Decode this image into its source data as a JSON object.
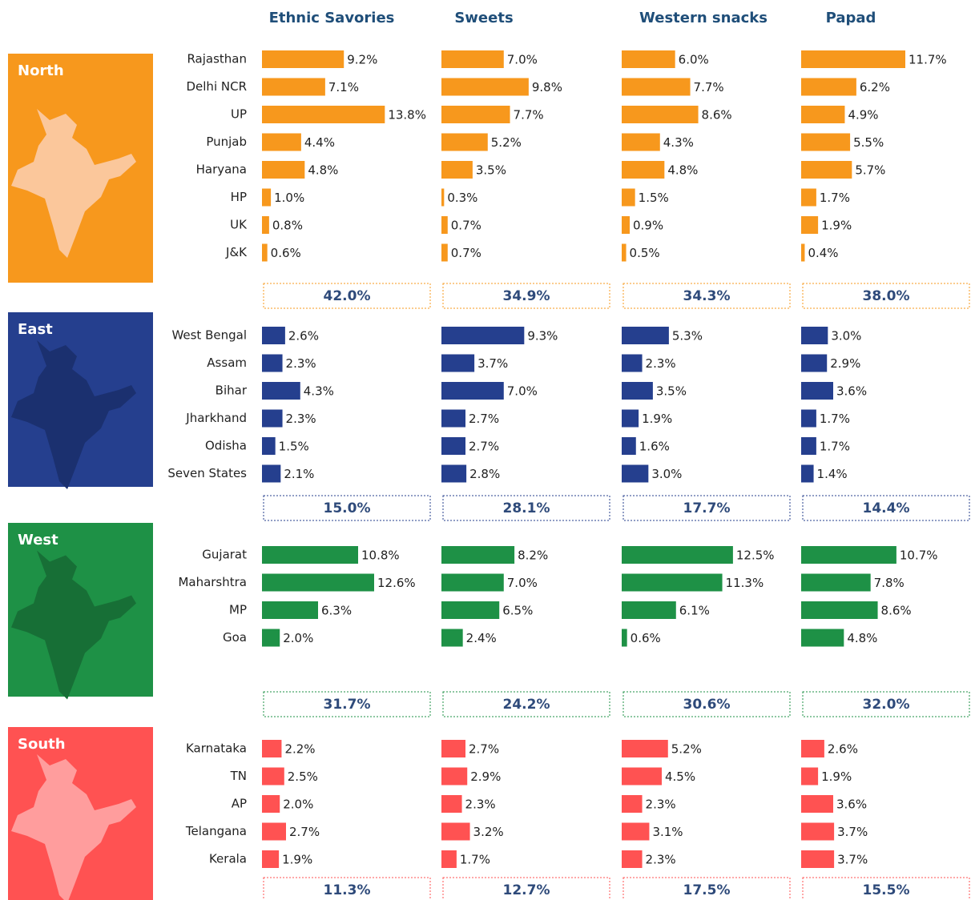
{
  "chart_data": [
    {
      "type": "bar",
      "orientation": "horizontal",
      "title": "North",
      "color": "#f7981d",
      "xlim": [
        0,
        18
      ],
      "categories": [
        "Rajasthan",
        "Delhi NCR",
        "UP",
        "Punjab",
        "Haryana",
        "HP",
        "UK",
        "J&K"
      ],
      "series": [
        {
          "name": "Ethnic Savories",
          "values": [
            9.2,
            7.1,
            13.8,
            4.4,
            4.8,
            1.0,
            0.8,
            0.6
          ],
          "value_labels": [
            "9.2%",
            "7.1%",
            "13.8%",
            "4.4%",
            "4.8%",
            "1.0%",
            "0.8%",
            "0.6%"
          ],
          "total": 42.0,
          "total_label": "42.0%"
        },
        {
          "name": "Sweets",
          "values": [
            7.0,
            9.8,
            7.7,
            5.2,
            3.5,
            0.3,
            0.7,
            0.7
          ],
          "value_labels": [
            "7.0%",
            "9.8%",
            "7.7%",
            "5.2%",
            "3.5%",
            "0.3%",
            "0.7%",
            "0.7%"
          ],
          "total": 34.9,
          "total_label": "34.9%"
        },
        {
          "name": "Western snacks",
          "values": [
            6.0,
            7.7,
            8.6,
            4.3,
            4.8,
            1.5,
            0.9,
            0.5
          ],
          "value_labels": [
            "6.0%",
            "7.7%",
            "8.6%",
            "4.3%",
            "4.8%",
            "1.5%",
            "0.9%",
            "0.5%"
          ],
          "total": 34.3,
          "total_label": "34.3%"
        },
        {
          "name": "Papad",
          "values": [
            11.7,
            6.2,
            4.9,
            5.5,
            5.7,
            1.7,
            1.9,
            0.4
          ],
          "value_labels": [
            "11.7%",
            "6.2%",
            "4.9%",
            "5.5%",
            "5.7%",
            "1.7%",
            "1.9%",
            "0.4%"
          ],
          "total": 38.0,
          "total_label": "38.0%"
        }
      ]
    },
    {
      "type": "bar",
      "orientation": "horizontal",
      "title": "East",
      "color": "#253f8e",
      "xlim": [
        0,
        18
      ],
      "categories": [
        "West Bengal",
        "Assam",
        "Bihar",
        "Jharkhand",
        "Odisha",
        "Seven States"
      ],
      "series": [
        {
          "name": "Ethnic Savories",
          "values": [
            2.6,
            2.3,
            4.3,
            2.3,
            1.5,
            2.1
          ],
          "value_labels": [
            "2.6%",
            "2.3%",
            "4.3%",
            "2.3%",
            "1.5%",
            "2.1%"
          ],
          "total": 15.0,
          "total_label": "15.0%"
        },
        {
          "name": "Sweets",
          "values": [
            9.3,
            3.7,
            7.0,
            2.7,
            2.7,
            2.8
          ],
          "value_labels": [
            "9.3%",
            "3.7%",
            "7.0%",
            "2.7%",
            "2.7%",
            "2.8%"
          ],
          "total": 28.1,
          "total_label": "28.1%"
        },
        {
          "name": "Western snacks",
          "values": [
            5.3,
            2.3,
            3.5,
            1.9,
            1.6,
            3.0
          ],
          "value_labels": [
            "5.3%",
            "2.3%",
            "3.5%",
            "1.9%",
            "1.6%",
            "3.0%"
          ],
          "total": 17.7,
          "total_label": "17.7%"
        },
        {
          "name": "Papad",
          "values": [
            3.0,
            2.9,
            3.6,
            1.7,
            1.7,
            1.4
          ],
          "value_labels": [
            "3.0%",
            "2.9%",
            "3.6%",
            "1.7%",
            "1.7%",
            "1.4%"
          ],
          "total": 14.4,
          "total_label": "14.4%"
        }
      ]
    },
    {
      "type": "bar",
      "orientation": "horizontal",
      "title": "West",
      "color": "#1e9146",
      "xlim": [
        0,
        18
      ],
      "categories": [
        "Gujarat",
        "Maharshtra",
        "MP",
        "Goa"
      ],
      "series": [
        {
          "name": "Ethnic Savories",
          "values": [
            10.8,
            12.6,
            6.3,
            2.0
          ],
          "value_labels": [
            "10.8%",
            "12.6%",
            "6.3%",
            "2.0%"
          ],
          "total": 31.7,
          "total_label": "31.7%"
        },
        {
          "name": "Sweets",
          "values": [
            8.2,
            7.0,
            6.5,
            2.4
          ],
          "value_labels": [
            "8.2%",
            "7.0%",
            "6.5%",
            "2.4%"
          ],
          "total": 24.2,
          "total_label": "24.2%"
        },
        {
          "name": "Western snacks",
          "values": [
            12.5,
            11.3,
            6.1,
            0.6
          ],
          "value_labels": [
            "12.5%",
            "11.3%",
            "6.1%",
            "0.6%"
          ],
          "total": 30.6,
          "total_label": "30.6%"
        },
        {
          "name": "Papad",
          "values": [
            10.7,
            7.8,
            8.6,
            4.8
          ],
          "value_labels": [
            "10.7%",
            "7.8%",
            "8.6%",
            "4.8%"
          ],
          "total": 32.0,
          "total_label": "32.0%"
        }
      ]
    },
    {
      "type": "bar",
      "orientation": "horizontal",
      "title": "South",
      "color": "#ff5252",
      "xlim": [
        0,
        18
      ],
      "categories": [
        "Karnataka",
        "TN",
        "AP",
        "Telangana",
        "Kerala"
      ],
      "series": [
        {
          "name": "Ethnic Savories",
          "values": [
            2.2,
            2.5,
            2.0,
            2.7,
            1.9
          ],
          "value_labels": [
            "2.2%",
            "2.5%",
            "2.0%",
            "2.7%",
            "1.9%"
          ],
          "total": 11.3,
          "total_label": "11.3%"
        },
        {
          "name": "Sweets",
          "values": [
            2.7,
            2.9,
            2.3,
            3.2,
            1.7
          ],
          "value_labels": [
            "2.7%",
            "2.9%",
            "2.3%",
            "3.2%",
            "1.7%"
          ],
          "total": 12.7,
          "total_label": "12.7%"
        },
        {
          "name": "Western snacks",
          "values": [
            5.2,
            4.5,
            2.3,
            3.1,
            2.3
          ],
          "value_labels": [
            "5.2%",
            "4.5%",
            "2.3%",
            "3.1%",
            "2.3%"
          ],
          "total": 17.5,
          "total_label": "17.5%"
        },
        {
          "name": "Papad",
          "values": [
            2.6,
            1.9,
            3.6,
            3.7,
            3.7
          ],
          "value_labels": [
            "2.6%",
            "1.9%",
            "3.6%",
            "3.7%",
            "3.7%"
          ],
          "total": 15.5,
          "total_label": "15.5%"
        }
      ]
    }
  ]
}
